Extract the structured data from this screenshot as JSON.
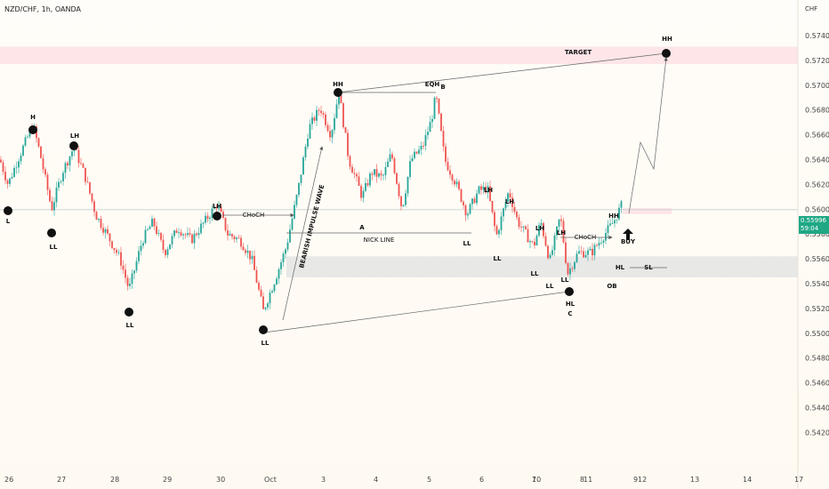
{
  "symbol_label": "NZD/CHF, 1h, OANDA",
  "currency_label": "CHF",
  "colors": {
    "up": "#26a69a",
    "down": "#ef5350",
    "target_zone": "#fde2e6",
    "ob_zone": "#e6e6e6",
    "buy_zone": "#fde2e6"
  },
  "chart_data": {
    "type": "candlestick",
    "x_ticks": [
      "26",
      "27",
      "28",
      "29",
      "30",
      "Oct",
      "3",
      "4",
      "5",
      "6",
      "7",
      "8",
      "9",
      "10",
      "11",
      "12",
      "13",
      "14",
      "17"
    ],
    "y_ticks": [
      "0.57400",
      "0.57200",
      "0.57000",
      "0.56800",
      "0.56600",
      "0.56400",
      "0.56200",
      "0.56000",
      "0.55800",
      "0.55600",
      "0.55400",
      "0.55200",
      "0.55000",
      "0.54800",
      "0.54600",
      "0.54400",
      "0.54200"
    ],
    "ylim": [
      0.5415,
      0.5755
    ],
    "last_price": "0.55996",
    "countdown": "59:04",
    "zones": [
      {
        "name": "target-zone",
        "label": "TARGET",
        "y_low": 0.5717,
        "y_high": 0.5731
      },
      {
        "name": "ob-zone",
        "label": "OB",
        "y_low": 0.5545,
        "y_high": 0.5562
      },
      {
        "name": "buy-zone",
        "y_low": 0.5596,
        "y_high": 0.5601
      }
    ],
    "annotations": {
      "swing_labels": [
        "L",
        "H",
        "LH",
        "LL",
        "LL",
        "LH",
        "LL",
        "HH",
        "A",
        "EQH",
        "B",
        "LL",
        "LH",
        "LH",
        "LL",
        "LH",
        "LL",
        "LH",
        "LL",
        "LL",
        "HL",
        "C",
        "HH",
        "HL",
        "HH",
        "BUY",
        "SL",
        "OB"
      ],
      "choch_labels": [
        "CHoCH",
        "CHoCH"
      ],
      "nick_line": "NICK LINE",
      "wave_label": "BEARISH IMPULSE WAVE",
      "target_label": "TARGET"
    }
  }
}
